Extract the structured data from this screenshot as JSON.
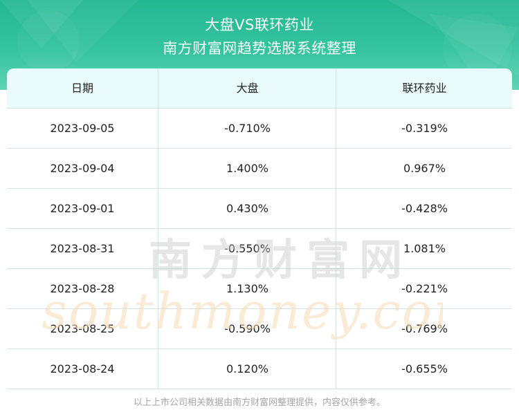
{
  "header": {
    "title_line1": "大盘VS联环药业",
    "title_line2": "南方财富网趋势选股系统整理"
  },
  "table": {
    "columns": [
      "日期",
      "大盘",
      "联环药业"
    ],
    "rows": [
      [
        "2023-09-05",
        "-0.710%",
        "-0.319%"
      ],
      [
        "2023-09-04",
        "1.400%",
        "0.967%"
      ],
      [
        "2023-09-01",
        "0.430%",
        "-0.428%"
      ],
      [
        "2023-08-31",
        "-0.550%",
        "1.081%"
      ],
      [
        "2023-08-28",
        "1.130%",
        "-0.221%"
      ],
      [
        "2023-08-25",
        "-0.590%",
        "-0.769%"
      ],
      [
        "2023-08-24",
        "0.120%",
        "-0.655%"
      ]
    ]
  },
  "watermark": {
    "cn": "南方财富网",
    "en": "southmoney.com"
  },
  "footnote": "以上上市公司相关数据由南方财富网整理提供，内容仅供参考。",
  "colors": {
    "header_green": "#2fbf98",
    "table_head_bg": "#e9fbfb",
    "grid_line": "#cfe7e0",
    "watermark_orange": "#f6dcb6"
  }
}
